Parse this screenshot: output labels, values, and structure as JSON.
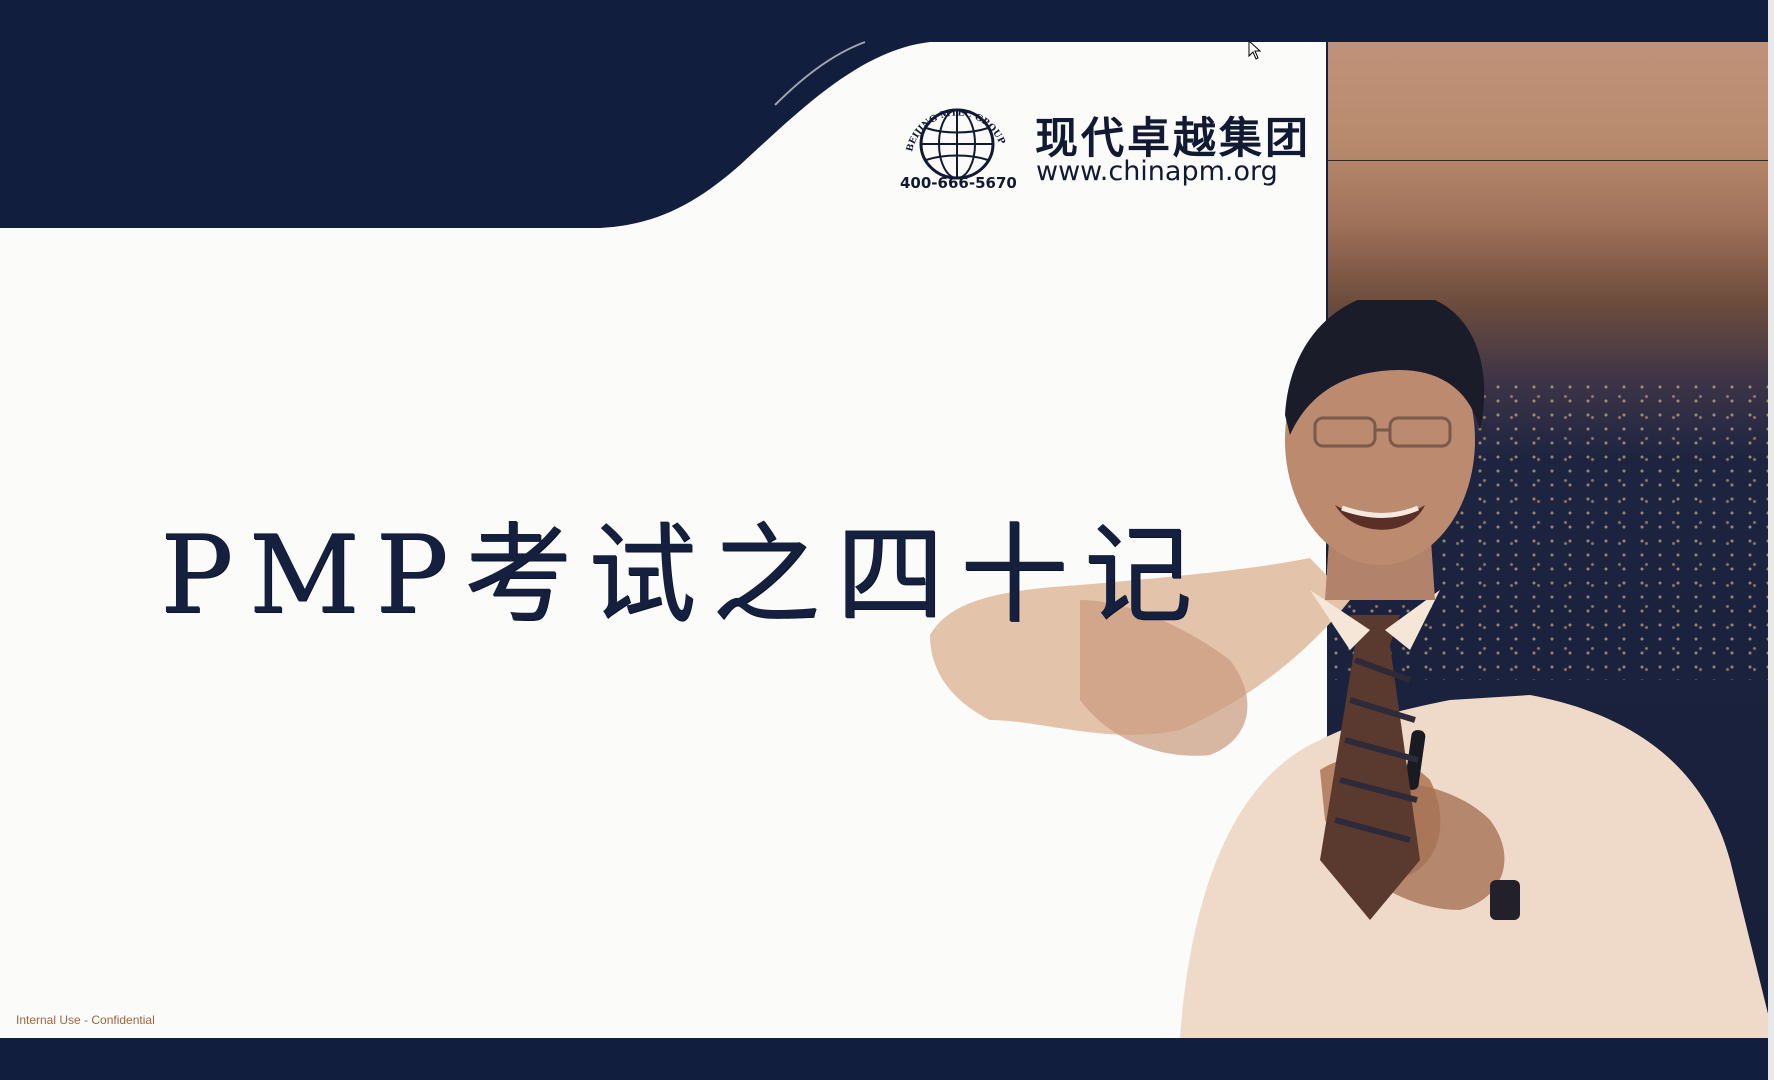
{
  "slide": {
    "title": "PMP考试之四十记",
    "footer_note": "Internal Use - Confidential"
  },
  "logo": {
    "company_name": "现代卓越集团",
    "website": "www.chinapm.org",
    "phone": "400-666-5670",
    "seal_text": "BEIJING MTEC GROUP HOLDINGS LTD"
  },
  "colors": {
    "navy": "#121e3e",
    "slide_background": "#fbfbf9",
    "footer_text": "#a0653c",
    "photo_tone": "#b88a6d"
  },
  "icons": [
    "globe-logo-icon",
    "mouse-pointer-icon"
  ]
}
